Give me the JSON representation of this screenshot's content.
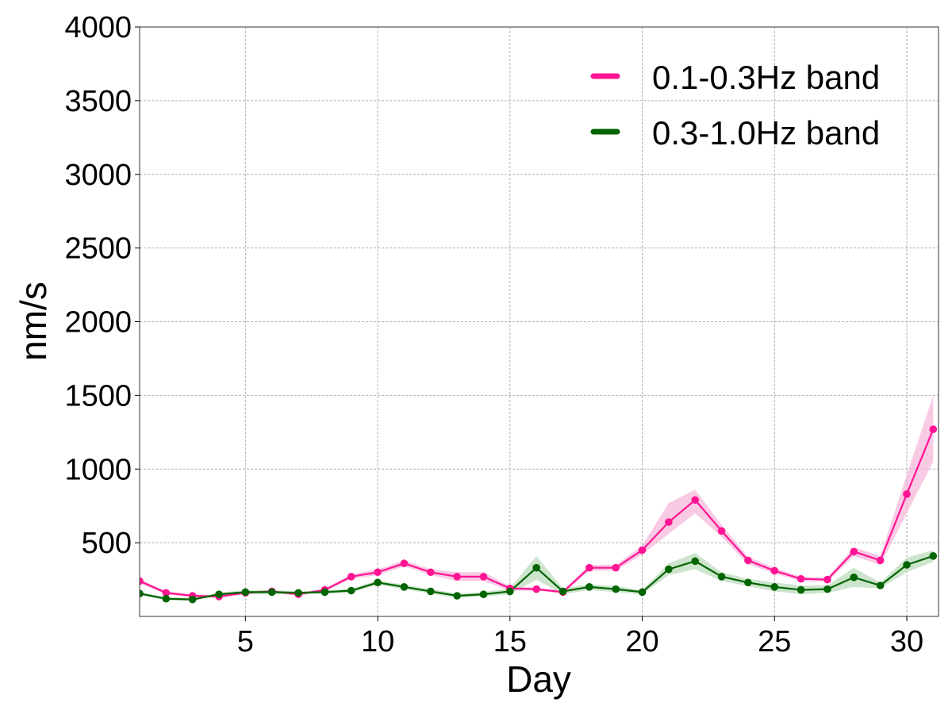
{
  "chart_data": {
    "type": "line",
    "xlabel": "Day",
    "ylabel": "nm/s",
    "xlim": [
      1,
      31.2
    ],
    "ylim": [
      0,
      4000
    ],
    "x_ticks": [
      5,
      10,
      15,
      20,
      25,
      30
    ],
    "y_ticks": [
      500,
      1000,
      1500,
      2000,
      2500,
      3000,
      3500,
      4000
    ],
    "grid": true,
    "legend_position": "top-right",
    "x": [
      1,
      2,
      3,
      4,
      5,
      6,
      7,
      8,
      9,
      10,
      11,
      12,
      13,
      14,
      15,
      16,
      17,
      18,
      19,
      20,
      21,
      22,
      23,
      24,
      25,
      26,
      27,
      28,
      29,
      30,
      31
    ],
    "series": [
      {
        "name": "0.1-0.3Hz band",
        "color": "#ff1493",
        "band_color": "#f7b3d9",
        "values": [
          240,
          160,
          140,
          135,
          160,
          170,
          150,
          180,
          270,
          300,
          360,
          300,
          270,
          270,
          190,
          185,
          165,
          330,
          330,
          450,
          640,
          790,
          580,
          380,
          310,
          255,
          250,
          440,
          380,
          830,
          1270
        ],
        "lower": [
          225,
          150,
          130,
          125,
          150,
          160,
          140,
          170,
          255,
          280,
          340,
          280,
          240,
          240,
          175,
          175,
          155,
          310,
          310,
          420,
          560,
          700,
          540,
          355,
          290,
          240,
          235,
          410,
          350,
          700,
          1050
        ],
        "upper": [
          255,
          170,
          150,
          145,
          170,
          180,
          160,
          190,
          285,
          320,
          380,
          320,
          300,
          300,
          205,
          195,
          175,
          350,
          350,
          480,
          770,
          860,
          620,
          405,
          330,
          270,
          265,
          470,
          410,
          960,
          1500
        ]
      },
      {
        "name": "0.3-1.0Hz band",
        "color": "#006400",
        "band_color": "#b8d8b8",
        "values": [
          155,
          120,
          115,
          150,
          165,
          165,
          160,
          165,
          175,
          230,
          200,
          170,
          140,
          150,
          170,
          330,
          170,
          200,
          185,
          165,
          320,
          375,
          270,
          230,
          200,
          180,
          185,
          265,
          210,
          350,
          410
        ],
        "lower": [
          145,
          110,
          105,
          140,
          150,
          150,
          150,
          155,
          160,
          215,
          185,
          155,
          125,
          135,
          150,
          250,
          150,
          180,
          165,
          150,
          280,
          320,
          240,
          205,
          170,
          150,
          160,
          200,
          190,
          300,
          370
        ],
        "upper": [
          165,
          130,
          125,
          160,
          180,
          180,
          170,
          175,
          190,
          245,
          215,
          185,
          155,
          165,
          190,
          410,
          190,
          220,
          205,
          180,
          360,
          430,
          300,
          255,
          230,
          210,
          210,
          330,
          230,
          400,
          450
        ]
      }
    ]
  }
}
